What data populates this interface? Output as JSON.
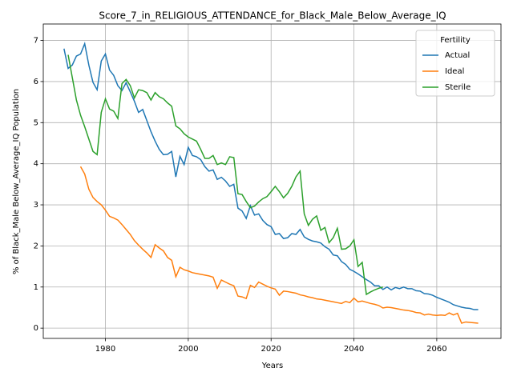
{
  "chart_data": {
    "type": "line",
    "title": "Score_7_in_RELIGIOUS_ATTENDANCE_for_Black_Male_Below_Average_IQ",
    "xlabel": "Years",
    "ylabel": "% of Black_Male Below_Average_IQ Population",
    "legend_title": "Fertility",
    "legend": "upper right",
    "grid": true,
    "xlim": [
      1965,
      2075.5
    ],
    "ylim": [
      -0.25,
      7.4
    ],
    "xticks": [
      1980,
      2000,
      2020,
      2040,
      2060
    ],
    "yticks": [
      0,
      1,
      2,
      3,
      4,
      5,
      6,
      7
    ],
    "x": [
      1970,
      1971,
      1972,
      1973,
      1974,
      1975,
      1976,
      1977,
      1978,
      1979,
      1980,
      1981,
      1982,
      1983,
      1984,
      1985,
      1986,
      1987,
      1988,
      1989,
      1990,
      1991,
      1992,
      1993,
      1994,
      1995,
      1996,
      1997,
      1998,
      1999,
      2000,
      2001,
      2002,
      2003,
      2004,
      2005,
      2006,
      2007,
      2008,
      2009,
      2010,
      2011,
      2012,
      2013,
      2014,
      2015,
      2016,
      2017,
      2018,
      2019,
      2020,
      2021,
      2022,
      2023,
      2024,
      2025,
      2026,
      2027,
      2028,
      2029,
      2030,
      2031,
      2032,
      2033,
      2034,
      2035,
      2036,
      2037,
      2038,
      2039,
      2040,
      2041,
      2042,
      2043,
      2044,
      2045,
      2046,
      2047,
      2048,
      2049,
      2050,
      2051,
      2052,
      2053,
      2054,
      2055,
      2056,
      2057,
      2058,
      2059,
      2060,
      2061,
      2062,
      2063,
      2064,
      2065,
      2066,
      2067,
      2068,
      2069,
      2070
    ],
    "series": [
      {
        "name": "Actual",
        "color": "#1f77b4",
        "values": [
          6.8,
          6.32,
          6.4,
          6.62,
          6.67,
          6.92,
          6.4,
          5.98,
          5.8,
          6.5,
          6.67,
          6.28,
          6.15,
          5.9,
          5.78,
          5.97,
          5.75,
          5.52,
          5.25,
          5.32,
          5.05,
          4.78,
          4.55,
          4.35,
          4.22,
          4.23,
          4.3,
          3.68,
          4.18,
          3.98,
          4.4,
          4.2,
          4.17,
          4.1,
          3.93,
          3.82,
          3.85,
          3.62,
          3.67,
          3.58,
          3.45,
          3.5,
          2.92,
          2.85,
          2.67,
          2.98,
          2.75,
          2.78,
          2.62,
          2.52,
          2.47,
          2.28,
          2.3,
          2.18,
          2.2,
          2.3,
          2.28,
          2.4,
          2.22,
          2.16,
          2.12,
          2.1,
          2.07,
          1.98,
          1.92,
          1.78,
          1.76,
          1.62,
          1.55,
          1.43,
          1.38,
          1.32,
          1.25,
          1.18,
          1.12,
          1.03,
          1.03,
          0.94,
          1.0,
          0.93,
          0.99,
          0.96,
          1.0,
          0.96,
          0.96,
          0.91,
          0.9,
          0.84,
          0.83,
          0.8,
          0.75,
          0.71,
          0.67,
          0.63,
          0.57,
          0.54,
          0.51,
          0.49,
          0.48,
          0.45,
          0.45
        ]
      },
      {
        "name": "Ideal",
        "color": "#ff7f0e",
        "values": [
          null,
          null,
          null,
          null,
          3.93,
          3.75,
          3.38,
          3.18,
          3.08,
          3.0,
          2.87,
          2.72,
          2.68,
          2.63,
          2.52,
          2.4,
          2.28,
          2.13,
          2.02,
          1.92,
          1.83,
          1.72,
          2.03,
          1.95,
          1.88,
          1.72,
          1.65,
          1.25,
          1.48,
          1.42,
          1.39,
          1.35,
          1.33,
          1.31,
          1.29,
          1.27,
          1.24,
          0.97,
          1.17,
          1.12,
          1.07,
          1.03,
          0.78,
          0.76,
          0.72,
          1.04,
          0.99,
          1.12,
          1.07,
          1.02,
          0.98,
          0.95,
          0.8,
          0.9,
          0.89,
          0.87,
          0.85,
          0.81,
          0.79,
          0.76,
          0.74,
          0.71,
          0.7,
          0.68,
          0.66,
          0.64,
          0.62,
          0.6,
          0.65,
          0.62,
          0.73,
          0.64,
          0.66,
          0.63,
          0.6,
          0.58,
          0.55,
          0.49,
          0.51,
          0.5,
          0.48,
          0.46,
          0.44,
          0.43,
          0.41,
          0.38,
          0.37,
          0.32,
          0.34,
          0.32,
          0.31,
          0.32,
          0.31,
          0.37,
          0.32,
          0.36,
          0.12,
          0.15,
          0.14,
          0.13,
          0.12
        ]
      },
      {
        "name": "Sterile",
        "color": "#2ca02c",
        "values": [
          null,
          6.65,
          6.1,
          5.55,
          5.18,
          4.9,
          4.6,
          4.3,
          4.22,
          5.25,
          5.58,
          5.33,
          5.28,
          5.1,
          5.95,
          6.05,
          5.9,
          5.6,
          5.8,
          5.78,
          5.73,
          5.55,
          5.73,
          5.63,
          5.58,
          5.48,
          5.4,
          4.92,
          4.85,
          4.73,
          4.65,
          4.6,
          4.55,
          4.35,
          4.13,
          4.13,
          4.2,
          3.98,
          4.02,
          3.98,
          4.17,
          4.15,
          3.27,
          3.25,
          3.08,
          2.93,
          2.97,
          3.07,
          3.15,
          3.2,
          3.32,
          3.45,
          3.32,
          3.17,
          3.28,
          3.45,
          3.68,
          3.82,
          2.78,
          2.5,
          2.65,
          2.73,
          2.38,
          2.45,
          2.08,
          2.2,
          2.43,
          1.92,
          1.93,
          2.0,
          2.15,
          1.5,
          1.6,
          0.82,
          0.88,
          0.93,
          0.97,
          1.0,
          null,
          null,
          null,
          null,
          null,
          null,
          null,
          null,
          null,
          null,
          null,
          null,
          null,
          null,
          null,
          null,
          null,
          null,
          null,
          null,
          null,
          null,
          null
        ]
      }
    ]
  }
}
